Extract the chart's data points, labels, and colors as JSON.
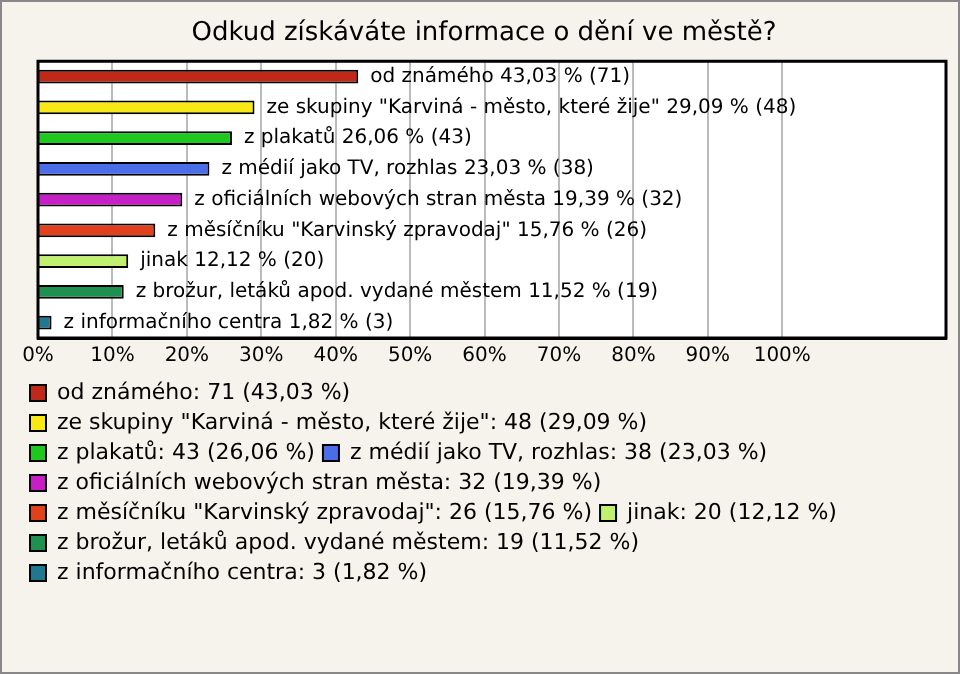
{
  "chart_data": {
    "type": "bar",
    "orientation": "horizontal",
    "title": "Odkud získáváte informace o dění ve městě?",
    "categories": [
      null,
      null,
      null,
      null,
      null,
      null,
      null,
      null,
      null
    ],
    "series": [
      {
        "name": "od známého: 71 (43,03 %)",
        "color": "#c0281a",
        "values": [
          43.03,
          null,
          null,
          null,
          null,
          null,
          null,
          null,
          null
        ],
        "value_labels": [
          "od známého 43,03 % (71)",
          null,
          null,
          null,
          null,
          null,
          null,
          null,
          null
        ]
      },
      {
        "name": "ze skupiny \"Karviná - město, které žije\": 48 (29,09 %)",
        "color": "#f8e814",
        "values": [
          null,
          29.09,
          null,
          null,
          null,
          null,
          null,
          null,
          null
        ],
        "value_labels": [
          null,
          "ze skupiny \"Karviná - město, které žije\" 29,09 % (48)",
          null,
          null,
          null,
          null,
          null,
          null,
          null
        ]
      },
      {
        "name": "z plakatů: 43 (26,06 %)",
        "color": "#1ec81e",
        "values": [
          null,
          null,
          26.06,
          null,
          null,
          null,
          null,
          null,
          null
        ],
        "value_labels": [
          null,
          null,
          "z plakatů 26,06 % (43)",
          null,
          null,
          null,
          null,
          null,
          null
        ]
      },
      {
        "name": "z médií jako TV, rozhlas: 38 (23,03 %)",
        "color": "#4a6ee8",
        "values": [
          null,
          null,
          null,
          23.03,
          null,
          null,
          null,
          null,
          null
        ],
        "value_labels": [
          null,
          null,
          null,
          "z médií jako TV, rozhlas 23,03 % (38)",
          null,
          null,
          null,
          null,
          null
        ]
      },
      {
        "name": "z oficiálních webových stran města: 32 (19,39 %)",
        "color": "#c81ec8",
        "values": [
          null,
          null,
          null,
          null,
          19.39,
          null,
          null,
          null,
          null
        ],
        "value_labels": [
          null,
          null,
          null,
          null,
          "z oficiálních webových stran města 19,39 % (32)",
          null,
          null,
          null,
          null
        ]
      },
      {
        "name": "z měsíčníku \"Karvinský zpravodaj\": 26 (15,76 %)",
        "color": "#e0401a",
        "values": [
          null,
          null,
          null,
          null,
          null,
          15.76,
          null,
          null,
          null
        ],
        "value_labels": [
          null,
          null,
          null,
          null,
          null,
          "z měsíčníku \"Karvinský zpravodaj\" 15,76 % (26)",
          null,
          null,
          null
        ]
      },
      {
        "name": "jinak: 20 (12,12 %)",
        "color": "#c0f070",
        "values": [
          null,
          null,
          null,
          null,
          null,
          null,
          12.12,
          null,
          null
        ],
        "value_labels": [
          null,
          null,
          null,
          null,
          null,
          null,
          "jinak 12,12 % (20)",
          null,
          null
        ]
      },
      {
        "name": "z brožur, letáků apod. vydané městem: 19 (11,52 %)",
        "color": "#1e9050",
        "values": [
          null,
          null,
          null,
          null,
          null,
          null,
          null,
          11.52,
          null
        ],
        "value_labels": [
          null,
          null,
          null,
          null,
          null,
          null,
          null,
          "z brožur, letáků apod. vydané městem 11,52 % (19)",
          null
        ]
      },
      {
        "name": "z informačního centra: 3 (1,82 %)",
        "color": "#1e7890",
        "values": [
          null,
          null,
          null,
          null,
          null,
          null,
          null,
          null,
          1.82
        ],
        "value_labels": [
          null,
          null,
          null,
          null,
          null,
          null,
          null,
          null,
          "z informačního centra 1,82 % (3)"
        ]
      }
    ],
    "xlim": [
      0,
      122
    ],
    "xticks": [
      {
        "value": 0,
        "label": "0%"
      },
      {
        "value": 10,
        "label": "10%"
      },
      {
        "value": 20,
        "label": "20%"
      },
      {
        "value": 30,
        "label": "30%"
      },
      {
        "value": 40,
        "label": "40%"
      },
      {
        "value": 50,
        "label": "50%"
      },
      {
        "value": 60,
        "label": "60%"
      },
      {
        "value": 70,
        "label": "70%"
      },
      {
        "value": 80,
        "label": "80%"
      },
      {
        "value": 90,
        "label": "90%"
      },
      {
        "value": 100,
        "label": "100%"
      }
    ],
    "grid": "x",
    "legend": "bottom",
    "tick_labels": "x"
  }
}
